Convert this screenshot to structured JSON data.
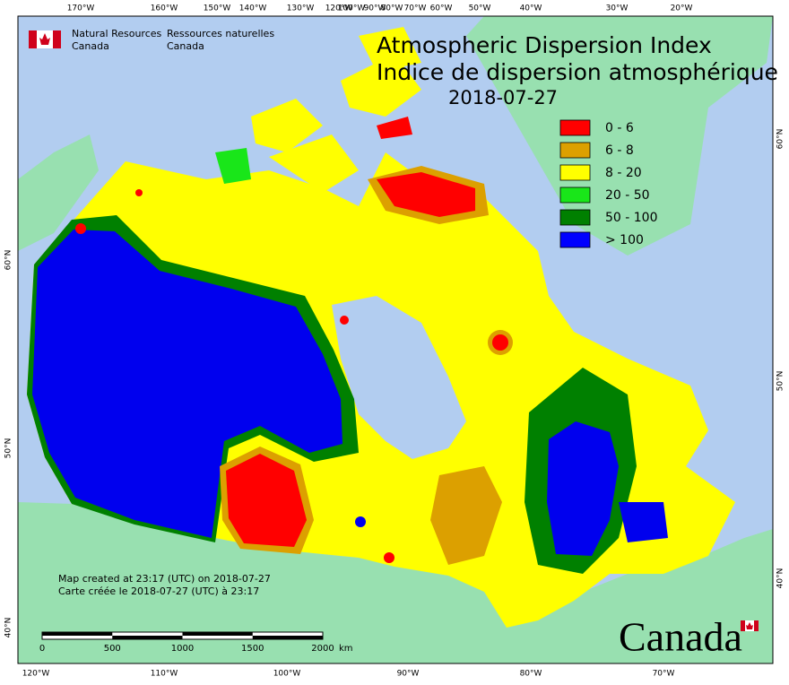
{
  "agency": {
    "en": [
      "Natural Resources",
      "Canada"
    ],
    "fr": [
      "Ressources naturelles",
      "Canada"
    ]
  },
  "title": [
    "Atmospheric Dispersion Index",
    "Indice de dispersion atmosphérique"
  ],
  "date": "2018-07-27",
  "legend": [
    {
      "label": "0 - 6",
      "color": "#ff0000"
    },
    {
      "label": "6 - 8",
      "color": "#dca000"
    },
    {
      "label": "8 - 20",
      "color": "#ffff00"
    },
    {
      "label": "20 - 50",
      "color": "#19e619"
    },
    {
      "label": "50 - 100",
      "color": "#008000"
    },
    {
      "label": "> 100",
      "color": "#0000ff"
    }
  ],
  "credits": [
    "Map created at 23:17 (UTC) on 2018-07-27",
    "Carte créée le 2018-07-27 (UTC) à 23:17"
  ],
  "scale_bar": {
    "ticks": [
      0,
      500,
      1000,
      1500,
      2000
    ],
    "unit": "km"
  },
  "graticule": {
    "top": [
      "170°W",
      "160°W",
      "150°W",
      "140°W",
      "130°W",
      "120°W",
      "100°W",
      "90°W",
      "80°W",
      "70°W",
      "60°W",
      "50°W",
      "40°W",
      "30°W",
      "20°W"
    ],
    "bottom": [
      "120°W",
      "110°W",
      "100°W",
      "90°W",
      "80°W",
      "70°W"
    ],
    "left": [
      "60°N",
      "50°N",
      "40°N"
    ],
    "right": [
      "60°N",
      "50°N",
      "40°N"
    ]
  },
  "wordmark": "Canada"
}
